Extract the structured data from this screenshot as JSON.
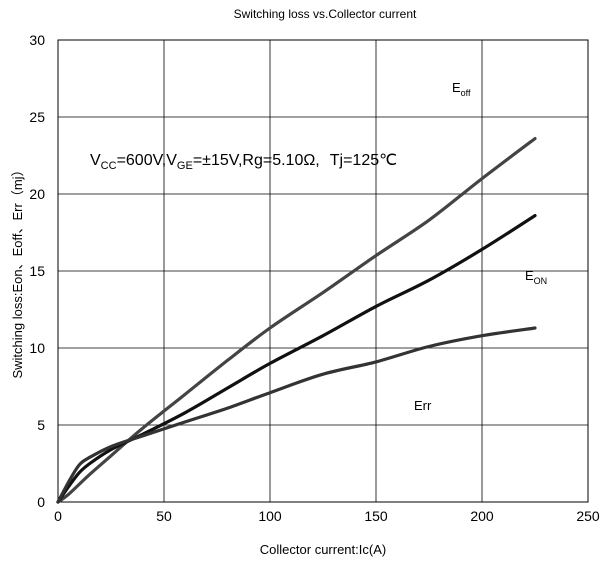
{
  "chart_data": {
    "type": "line",
    "title": "Switching loss vs.Collector current",
    "xlabel": "Collector current:Ic(A)",
    "ylabel": "Switching loss:Eon、Eoff、Err（mj）",
    "xlim": [
      0,
      250
    ],
    "ylim": [
      0,
      30
    ],
    "x_ticks": [
      "0",
      "50",
      "100",
      "150",
      "200",
      "250"
    ],
    "y_ticks": [
      "0",
      "5",
      "10",
      "15",
      "20",
      "25",
      "30"
    ],
    "grid": true,
    "condition": {
      "vcc_sym": "V",
      "vcc_sub": "CC",
      "vcc_val": "=600V,",
      "vge_sym": "V",
      "vge_sub": "GE",
      "vge_val": "=±15V,Rg=5.10Ω,",
      "tj": "Tj=125℃"
    },
    "series": [
      {
        "name": "Eoff",
        "label_main": "E",
        "label_sub": "off",
        "color": "#444444",
        "x": [
          0,
          5,
          15,
          25,
          40,
          60,
          80,
          100,
          125,
          150,
          175,
          200,
          225
        ],
        "y": [
          0,
          0.5,
          1.8,
          3.0,
          4.8,
          7.0,
          9.2,
          11.3,
          13.6,
          16.0,
          18.3,
          21.0,
          23.6
        ]
      },
      {
        "name": "Eon",
        "label_main": "E",
        "label_sub": "ON",
        "color": "#111111",
        "x": [
          0,
          5,
          10,
          15,
          25,
          40,
          60,
          80,
          100,
          125,
          150,
          175,
          200,
          225
        ],
        "y": [
          0,
          1.0,
          1.9,
          2.5,
          3.4,
          4.4,
          5.8,
          7.4,
          9.0,
          10.8,
          12.7,
          14.4,
          16.4,
          18.6
        ]
      },
      {
        "name": "Err",
        "label_main": "Err",
        "label_sub": "",
        "color": "#333333",
        "x": [
          0,
          5,
          10,
          15,
          25,
          40,
          60,
          80,
          100,
          125,
          150,
          175,
          200,
          225
        ],
        "y": [
          0,
          1.3,
          2.4,
          2.9,
          3.6,
          4.3,
          5.2,
          6.1,
          7.1,
          8.3,
          9.1,
          10.1,
          10.8,
          11.3
        ]
      }
    ]
  }
}
